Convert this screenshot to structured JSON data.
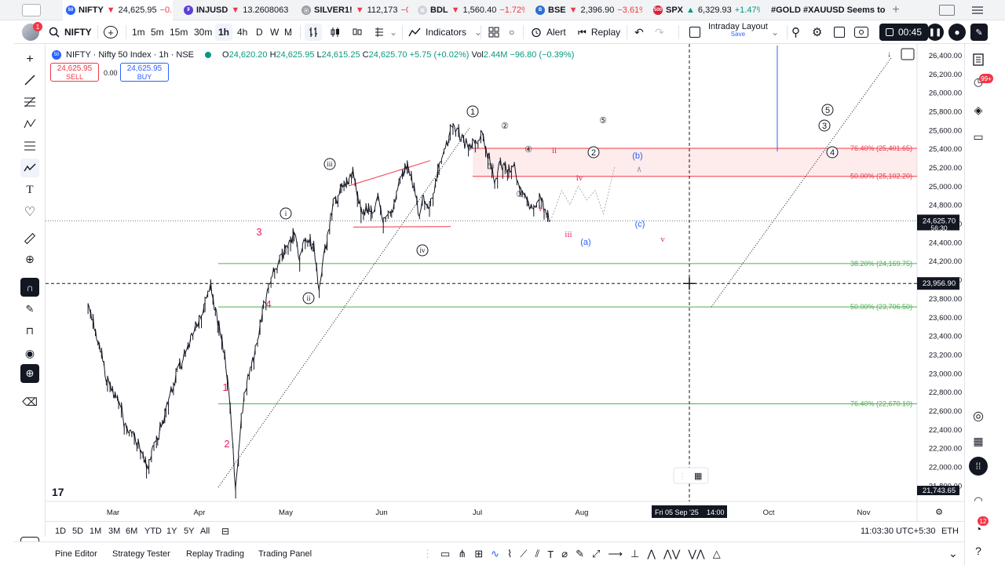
{
  "tabs": [
    {
      "icon": "50",
      "icon_bg": "#2962ff",
      "symbol": "NIFTY",
      "arrow": "▼",
      "price": "24,625.95",
      "change": "−0.",
      "dir": "down",
      "active": true
    },
    {
      "icon": "₮",
      "icon_bg": "#5b3fd6",
      "symbol": "INJUSD",
      "arrow": "▼",
      "price": "13.2608063",
      "change": "",
      "dir": "down"
    },
    {
      "icon": "⦿",
      "icon_bg": "#9aa0a6",
      "symbol": "SILVER1!",
      "arrow": "▼",
      "price": "112,173",
      "change": "−0",
      "dir": "down"
    },
    {
      "icon": "⊟",
      "icon_bg": "#d1d4dc",
      "symbol": "BDL",
      "arrow": "▼",
      "price": "1,560.40",
      "change": "−1.72%",
      "dir": "down"
    },
    {
      "icon": "B",
      "icon_bg": "#2d6fd3",
      "symbol": "BSE",
      "arrow": "▼",
      "price": "2,396.90",
      "change": "−3.61%",
      "dir": "down"
    },
    {
      "icon": "500",
      "icon_bg": "#d6213a",
      "symbol": "SPX",
      "arrow": "▲",
      "price": "6,329.93",
      "change": "+1.47%",
      "dir": "up"
    },
    {
      "icon": "",
      "icon_bg": "",
      "symbol": "#GOLD #XAUUSD Seems to",
      "arrow": "",
      "price": "",
      "change": "",
      "dir": ""
    }
  ],
  "toolbar": {
    "avatar_badge": "1",
    "symbol": "NIFTY",
    "intervals": [
      "1m",
      "5m",
      "15m",
      "30m",
      "1h",
      "4h",
      "D",
      "W",
      "M"
    ],
    "active_interval": "1h",
    "indicators_label": "Indicators",
    "alert_label": "Alert",
    "replay_label": "Replay",
    "layout_name": "Intraday Layout",
    "layout_save": "Save",
    "record_time": "00:45"
  },
  "legend": {
    "icon": "50",
    "title": "NIFTY · Nifty 50 Index · 1h · NSE",
    "o": "24,620.20",
    "h": "24,625.95",
    "l": "24,615.25",
    "c": "24,625.70",
    "change": "+5.75 (+0.02%)",
    "vol_label": "Vol",
    "vol": "2.44M",
    "vol_change": "−96.80 (−0.39%)",
    "sell_price": "24,625.95",
    "sell_label": "SELL",
    "spread": "0.00",
    "buy_price": "24,625.95",
    "buy_label": "BUY"
  },
  "colors": {
    "up": "#089981",
    "down": "#f23645",
    "accent": "#2962ff",
    "fib_red": "#f23645",
    "fib_green": "#4caf50",
    "wave_red": "#e91e63"
  },
  "chart_data": {
    "type": "candlestick-line",
    "symbol": "NIFTY",
    "interval": "1h",
    "price_ticks": [
      26400,
      26200,
      26000,
      25800,
      25600,
      25400,
      25200,
      25000,
      24800,
      24600,
      24400,
      24200,
      24000,
      23800,
      23600,
      23400,
      23200,
      23000,
      22800,
      22600,
      22400,
      22200,
      22000,
      21800
    ],
    "ylim": [
      21743.65,
      26500
    ],
    "time_labels": [
      "Mar",
      "Apr",
      "May",
      "Jun",
      "Jul",
      "Aug",
      "Oct",
      "Nov"
    ],
    "path": [
      [
        "Feb 20",
        23700
      ],
      [
        "Feb 24",
        23300
      ],
      [
        "Feb 27",
        22900
      ],
      [
        "Mar 3",
        22700
      ],
      [
        "Mar 5",
        22450
      ],
      [
        "Mar 10",
        22250
      ],
      [
        "Mar 13",
        22000
      ],
      [
        "Mar 17",
        22300
      ],
      [
        "Mar 20",
        22600
      ],
      [
        "Mar 24",
        23000
      ],
      [
        "Mar 27",
        23200
      ],
      [
        "Mar 31",
        23500
      ],
      [
        "Apr 3",
        23700
      ],
      [
        "Apr 5",
        23900
      ],
      [
        "Apr 8",
        23500
      ],
      [
        "Apr 10",
        23200
      ],
      [
        "Apr 12",
        22700
      ],
      [
        "Apr 14",
        21743.65
      ],
      [
        "Apr 16",
        22500
      ],
      [
        "Apr 18",
        22900
      ],
      [
        "Apr 21",
        23200
      ],
      [
        "Apr 24",
        23700
      ],
      [
        "Apr 28",
        24100
      ],
      [
        "May 2",
        24300
      ],
      [
        "May 5",
        24500
      ],
      [
        "May 7",
        24200
      ],
      [
        "May 9",
        24450
      ],
      [
        "May 12",
        24350
      ],
      [
        "May 13",
        24100
      ],
      [
        "May 14",
        23900
      ],
      [
        "May 16",
        24300
      ],
      [
        "May 19",
        24800
      ],
      [
        "May 22",
        24950
      ],
      [
        "May 26",
        25100
      ],
      [
        "May 29",
        24750
      ],
      [
        "Jun 2",
        24700
      ],
      [
        "Jun 4",
        24850
      ],
      [
        "Jun 6",
        24600
      ],
      [
        "Jun 9",
        24700
      ],
      [
        "Jun 12",
        25100
      ],
      [
        "Jun 15",
        25200
      ],
      [
        "Jun 17",
        24950
      ],
      [
        "Jun 19",
        24650
      ],
      [
        "Jun 20",
        24850
      ],
      [
        "Jun 23",
        24800
      ],
      [
        "Jun 26",
        25200
      ],
      [
        "Jun 30",
        25560
      ],
      [
        "Jul 1",
        25650
      ],
      [
        "Jul 3",
        25550
      ],
      [
        "Jul 7",
        25380
      ],
      [
        "Jul 9",
        25450
      ],
      [
        "Jul 11",
        25560
      ],
      [
        "Jul 14",
        25300
      ],
      [
        "Jul 16",
        25000
      ],
      [
        "Jul 18",
        25250
      ],
      [
        "Jul 21",
        25150
      ],
      [
        "Jul 23",
        25250
      ],
      [
        "Jul 25",
        24950
      ],
      [
        "Jul 28",
        24800
      ],
      [
        "Jul 30",
        24700
      ],
      [
        "Aug 1",
        24900
      ],
      [
        "Aug 4",
        24650
      ],
      [
        "Aug 5",
        24625.95
      ]
    ],
    "ghost_projection": [
      [
        "Aug 6",
        24700
      ],
      [
        "Aug 9",
        24950
      ],
      [
        "Aug 12",
        24800
      ],
      [
        "Aug 15",
        25000
      ],
      [
        "Aug 18",
        24850
      ],
      [
        "Aug 21",
        24950
      ],
      [
        "Aug 24",
        24700
      ],
      [
        "Aug 28",
        25200
      ]
    ],
    "fib_levels": [
      {
        "label": "76.40% (25,401.65)",
        "price": 25401.65,
        "color": "#f23645"
      },
      {
        "label": "50.00% (25,102.20)",
        "price": 25102.2,
        "color": "#f23645"
      },
      {
        "label": "38.20% (24,169.75)",
        "price": 24169.75,
        "color": "#4caf50"
      },
      {
        "label": "50.00% (23,706.50)",
        "price": 23706.5,
        "color": "#4caf50"
      },
      {
        "label": "76.40% (22,670.10)",
        "price": 22670.1,
        "color": "#4caf50"
      }
    ],
    "current_price": "24,625.70",
    "countdown": "56:30",
    "crosshair_price": "23,956.90",
    "crosshair_time": "Fri 05 Sep '25",
    "crosshair_clock": "14:00",
    "low_label": "21,743.65",
    "wave_labels": [
      {
        "text": "1",
        "style": "circle"
      },
      {
        "text": "2",
        "style": "circle"
      },
      {
        "text": "3",
        "style": "dcircle"
      },
      {
        "text": "4",
        "style": "circle"
      },
      {
        "text": "5",
        "style": "circle"
      },
      {
        "text": "i",
        "style": "roman-circle"
      },
      {
        "text": "ii",
        "style": "roman-circle"
      },
      {
        "text": "iii",
        "style": "roman-circle"
      },
      {
        "text": "iv",
        "style": "roman-circle"
      },
      {
        "text": "①",
        "style": "small"
      },
      {
        "text": "②",
        "style": "small"
      },
      {
        "text": "③",
        "style": "small"
      },
      {
        "text": "④",
        "style": "small"
      },
      {
        "text": "⑤",
        "style": "small"
      },
      {
        "text": "1",
        "style": "red"
      },
      {
        "text": "2",
        "style": "red"
      },
      {
        "text": "3",
        "style": "red"
      },
      {
        "text": "4",
        "style": "red"
      },
      {
        "text": "i",
        "style": "red-small"
      },
      {
        "text": "ii",
        "style": "red-small"
      },
      {
        "text": "iii",
        "style": "red-small"
      },
      {
        "text": "iv",
        "style": "red-small"
      },
      {
        "text": "v",
        "style": "red-small"
      },
      {
        "text": "(a)",
        "style": "blue"
      },
      {
        "text": "(b)",
        "style": "blue"
      },
      {
        "text": "(c)",
        "style": "blue"
      }
    ]
  },
  "range": {
    "buttons": [
      "1D",
      "5D",
      "1M",
      "3M",
      "6M",
      "YTD",
      "1Y",
      "5Y",
      "All"
    ],
    "clock": "11:03:30 UTC+5:30",
    "session": "ETH"
  },
  "bottom": {
    "tabs": [
      "Pine Editor",
      "Strategy Tester",
      "Replay Trading",
      "Trading Panel"
    ]
  },
  "rightpanel": {
    "notif_badge": "99+",
    "extra_badge": "12"
  }
}
